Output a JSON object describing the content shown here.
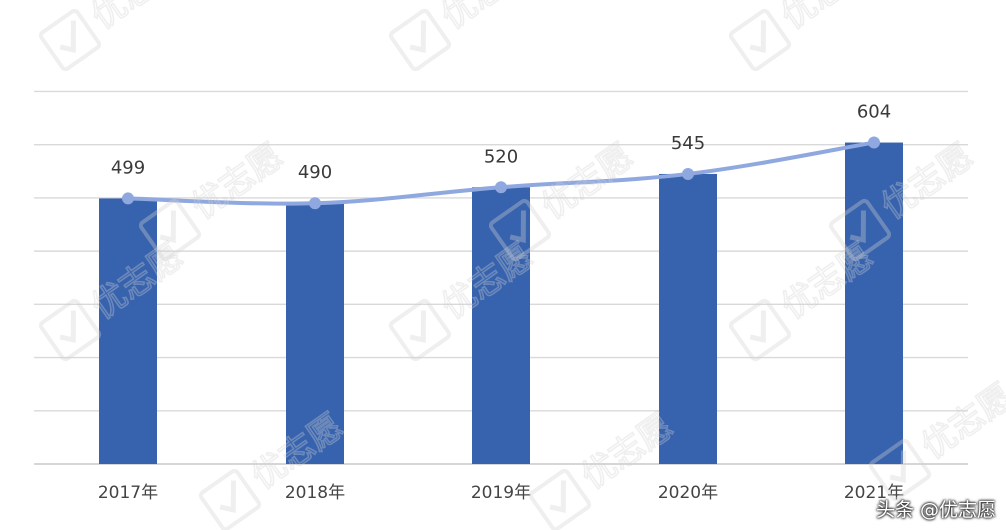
{
  "chart_data": {
    "type": "bar",
    "categories": [
      "2017年",
      "2018年",
      "2019年",
      "2020年",
      "2021年"
    ],
    "values": [
      499,
      490,
      520,
      545,
      604
    ],
    "line_overlay": true,
    "title": "",
    "xlabel": "",
    "ylabel": "",
    "ylim": [
      0,
      700
    ],
    "grid": true,
    "legend": "none",
    "colors": {
      "bar": "#3662ae",
      "line": "#8fa8df",
      "grid": "#d9d9d9",
      "axis": "#c9c9c9"
    }
  },
  "watermark": {
    "logo_text": "优志愿",
    "icon": "checkmark-badge-icon"
  },
  "footer": {
    "source_text": "头条 @优志愿"
  }
}
